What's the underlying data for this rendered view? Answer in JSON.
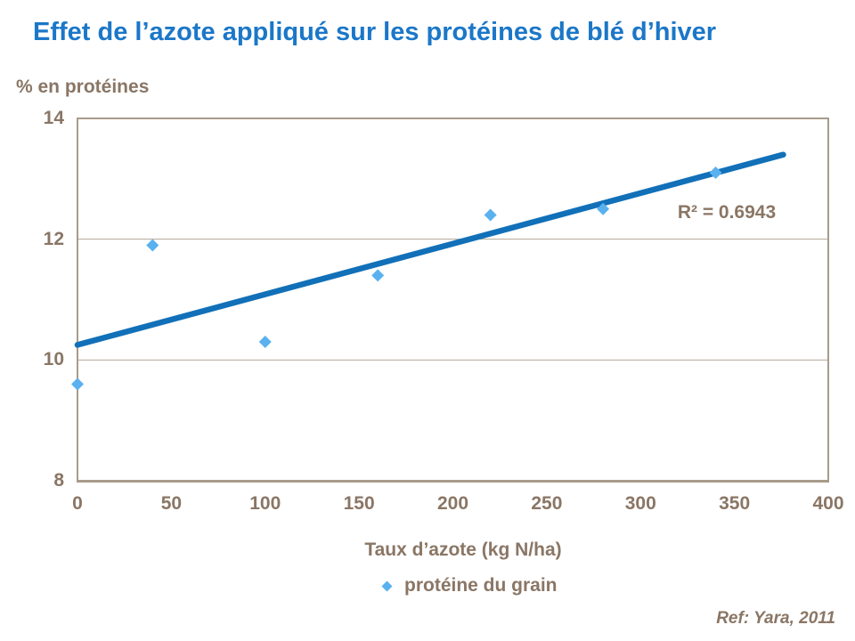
{
  "header": {
    "title": "Effet de l’azote appliqué sur les protéines de blé d’hiver"
  },
  "axes": {
    "y_label": "% en protéines",
    "x_label": "Taux d’azote (kg N/ha)"
  },
  "annotation": {
    "r2_label": "R² = 0.6943"
  },
  "legend": {
    "label": "protéine du grain",
    "marker": "diamond"
  },
  "footer": {
    "ref": "Ref: Yara, 2011"
  },
  "colors": {
    "title_blue": "#1b77c8",
    "trend_blue": "#1170b8",
    "marker_blue": "#5ab1ef",
    "text_brown": "#8a7665",
    "axis_border": "#a89b8a",
    "gridline": "#b3a796",
    "background": "#ffffff"
  },
  "chart_data": {
    "type": "scatter",
    "title": "Effet de l’azote appliqué sur les protéines de blé d’hiver",
    "xlabel": "Taux d’azote (kg N/ha)",
    "ylabel": "% en protéines",
    "xlim": [
      0,
      400
    ],
    "ylim": [
      8,
      14
    ],
    "xticks": [
      0,
      50,
      100,
      150,
      200,
      250,
      300,
      350,
      400
    ],
    "yticks": [
      8,
      10,
      12,
      14
    ],
    "gridlines_y": [
      10,
      12
    ],
    "grid": "horizontal-only",
    "legend_position": "bottom",
    "series": [
      {
        "name": "protéine du grain",
        "marker": "diamond",
        "points": [
          [
            0,
            9.6
          ],
          [
            40,
            11.9
          ],
          [
            100,
            10.3
          ],
          [
            160,
            11.4
          ],
          [
            220,
            12.4
          ],
          [
            280,
            12.5
          ],
          [
            340,
            13.1
          ]
        ]
      }
    ],
    "trendline": {
      "type": "linear",
      "x_start": 0,
      "y_start": 10.25,
      "x_end": 376,
      "y_end": 13.4,
      "r2": 0.6943
    },
    "annotations": [
      "R² = 0.6943"
    ]
  }
}
